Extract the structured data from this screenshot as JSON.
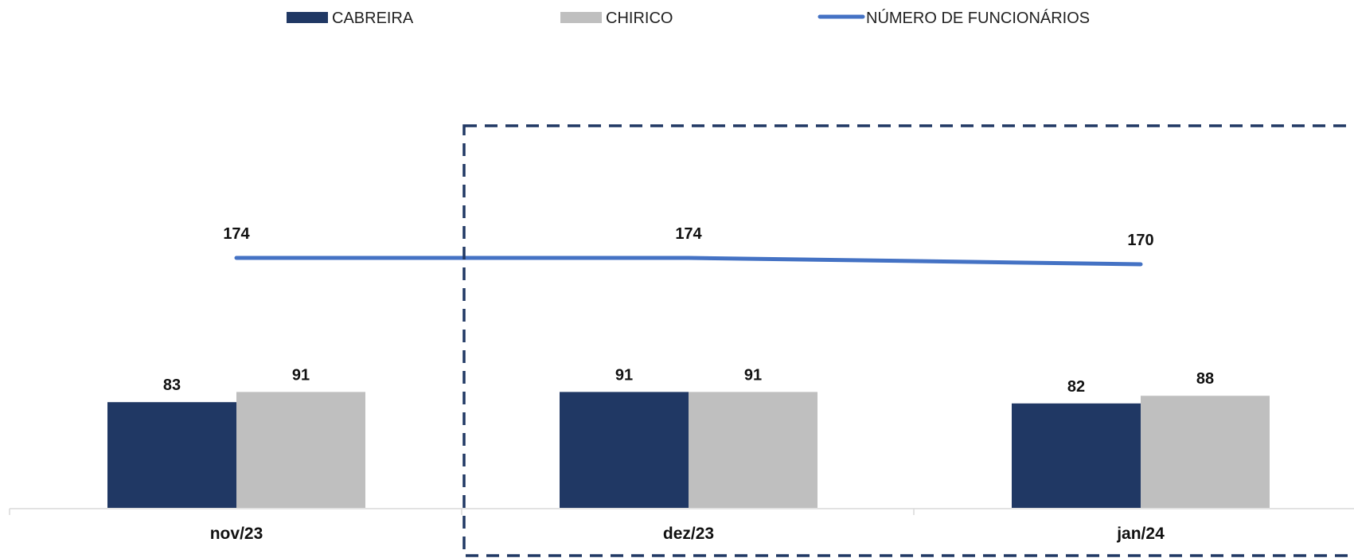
{
  "chart_data": {
    "type": "bar",
    "title": "",
    "xlabel": "",
    "ylabel": "",
    "categories": [
      "nov/23",
      "dez/23",
      "jan/24"
    ],
    "series": [
      {
        "name": "CABREIRA",
        "type": "bar",
        "values": [
          83,
          91,
          82
        ],
        "color": "#203864"
      },
      {
        "name": "CHIRICO",
        "type": "bar",
        "values": [
          91,
          91,
          88
        ],
        "color": "#bfbfbf"
      },
      {
        "name": "NÚMERO DE FUNCIONÁRIOS",
        "type": "line",
        "values": [
          174,
          174,
          170
        ],
        "color": "#4472c4"
      }
    ],
    "legend_position": "top",
    "grid": false,
    "highlight": {
      "style": "dashed-box",
      "color": "#203864",
      "covers": [
        "dez/23",
        "jan/24"
      ]
    }
  }
}
